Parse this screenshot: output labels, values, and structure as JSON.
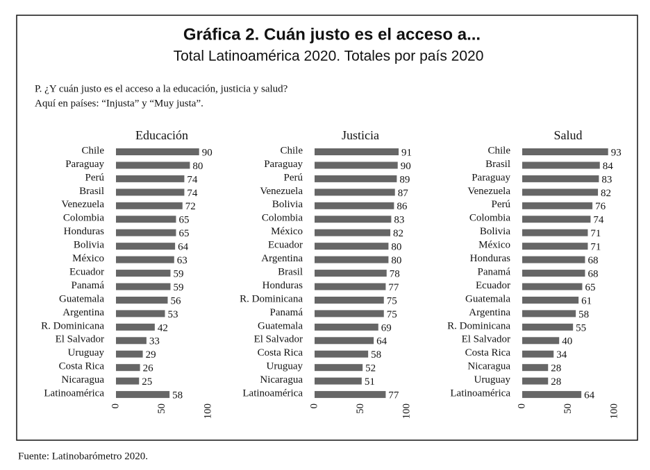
{
  "header": {
    "title": "Gráfica 2. Cuán justo es el acceso a...",
    "subtitle": "Total Latinoamérica 2020. Totales por país 2020"
  },
  "question": [
    "P. ¿Y cuán justo es el acceso a la educación, justicia y salud?",
    "Aquí en países: “Injusta” y “Muy justa”."
  ],
  "source": "Fuente: Latinobarómetro 2020.",
  "chart_data": [
    {
      "type": "bar",
      "orientation": "horizontal",
      "title": "Educación",
      "color": "#666666",
      "categories": [
        "Chile",
        "Paraguay",
        "Perú",
        "Brasil",
        "Venezuela",
        "Colombia",
        "Honduras",
        "Bolivia",
        "México",
        "Ecuador",
        "Panamá",
        "Guatemala",
        "Argentina",
        "R. Dominicana",
        "El Salvador",
        "Uruguay",
        "Costa Rica",
        "Nicaragua",
        "Latinoamérica"
      ],
      "values": [
        90,
        80,
        74,
        74,
        72,
        65,
        65,
        64,
        63,
        59,
        59,
        56,
        53,
        42,
        33,
        29,
        26,
        25,
        58
      ],
      "xlim": [
        0,
        100
      ],
      "xticks": [
        0,
        50,
        100
      ]
    },
    {
      "type": "bar",
      "orientation": "horizontal",
      "title": "Justicia",
      "color": "#666666",
      "categories": [
        "Chile",
        "Paraguay",
        "Perú",
        "Venezuela",
        "Bolivia",
        "Colombia",
        "México",
        "Ecuador",
        "Argentina",
        "Brasil",
        "Honduras",
        "R. Dominicana",
        "Panamá",
        "Guatemala",
        "El Salvador",
        "Costa Rica",
        "Uruguay",
        "Nicaragua",
        "Latinoamérica"
      ],
      "values": [
        91,
        90,
        89,
        87,
        86,
        83,
        82,
        80,
        80,
        78,
        77,
        75,
        75,
        69,
        64,
        58,
        52,
        51,
        77
      ],
      "xlim": [
        0,
        100
      ],
      "xticks": [
        0,
        50,
        100
      ]
    },
    {
      "type": "bar",
      "orientation": "horizontal",
      "title": "Salud",
      "color": "#666666",
      "categories": [
        "Chile",
        "Brasil",
        "Paraguay",
        "Venezuela",
        "Perú",
        "Colombia",
        "Bolivia",
        "México",
        "Honduras",
        "Panamá",
        "Ecuador",
        "Guatemala",
        "Argentina",
        "R. Dominicana",
        "El Salvador",
        "Costa Rica",
        "Nicaragua",
        "Uruguay",
        "Latinoamérica"
      ],
      "values": [
        93,
        84,
        83,
        82,
        76,
        74,
        71,
        71,
        68,
        68,
        65,
        61,
        58,
        55,
        40,
        34,
        28,
        28,
        64
      ],
      "xlim": [
        0,
        100
      ],
      "xticks": [
        0,
        50,
        100
      ]
    }
  ]
}
